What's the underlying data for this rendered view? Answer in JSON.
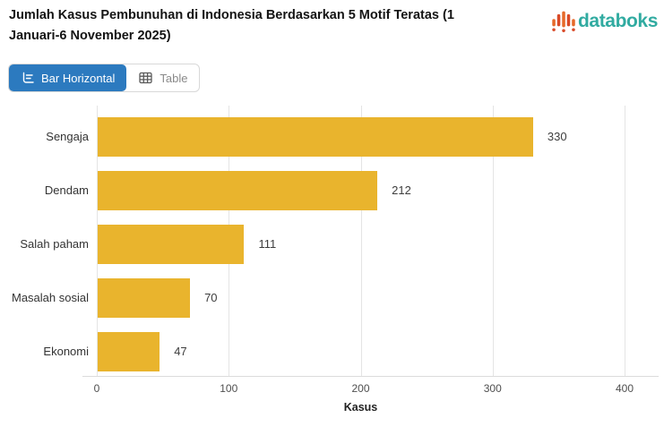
{
  "header": {
    "title": "Jumlah Kasus Pembunuhan di Indonesia Berdasarkan 5 Motif Teratas (1 Januari-6 November 2025)",
    "brand": "databoks"
  },
  "toolbar": {
    "bar_horizontal_label": "Bar Horizontal",
    "table_label": "Table",
    "active_view": "Bar Horizontal"
  },
  "colors": {
    "bar": "#E9B42D",
    "active_button_bg": "#2C7ABF",
    "brand_text": "#31ABA1",
    "grid": "#E4E4E4",
    "axis": "#DCDCDC"
  },
  "chart_data": {
    "type": "bar",
    "orientation": "horizontal",
    "title": "Jumlah Kasus Pembunuhan di Indonesia Berdasarkan 5 Motif Teratas (1 Januari-6 November 2025)",
    "categories": [
      "Sengaja",
      "Dendam",
      "Salah paham",
      "Masalah sosial",
      "Ekonomi"
    ],
    "values": [
      330,
      212,
      111,
      70,
      47
    ],
    "xlabel": "Kasus",
    "ylabel": "",
    "xlim": [
      0,
      400
    ],
    "xticks": [
      0,
      100,
      200,
      300,
      400
    ],
    "grid": "vertical-only",
    "legend": "none",
    "value_labels": true,
    "bar_color": "#E9B42D"
  }
}
